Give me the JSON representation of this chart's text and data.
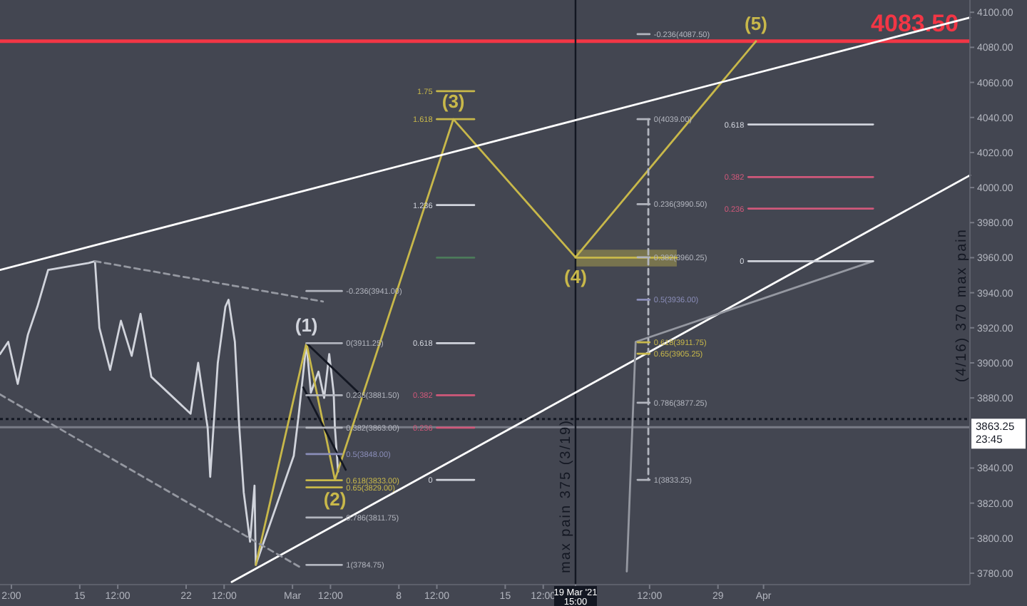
{
  "chart_data": {
    "type": "line",
    "xlim": [
      "2021-02-09T18:00",
      "2021-04-14T14:00"
    ],
    "ylim": [
      3773.5,
      4107
    ],
    "xticks": [
      {
        "value": "2021-02-10T12:00",
        "label": "2:00"
      },
      {
        "value": "2021-02-15",
        "label": "15"
      },
      {
        "value": "2021-02-17T12:00",
        "label": "12:00"
      },
      {
        "value": "2021-02-22",
        "label": "22"
      },
      {
        "value": "2021-02-24T12:00",
        "label": "12:00"
      },
      {
        "value": "2021-03-01",
        "label": "Mar"
      },
      {
        "value": "2021-03-03T12:00",
        "label": "12:00"
      },
      {
        "value": "2021-03-08",
        "label": "8"
      },
      {
        "value": "2021-03-10T12:00",
        "label": "12:00"
      },
      {
        "value": "2021-03-15",
        "label": "15"
      },
      {
        "value": "2021-03-17T12:00",
        "label": "12:00"
      },
      {
        "value": "2021-03-19T15:00",
        "label": "19 Mar '21 15:00"
      },
      {
        "value": "2021-03-24T12:00",
        "label": "12:00"
      },
      {
        "value": "2021-03-29",
        "label": "29"
      },
      {
        "value": "2021-04-01",
        "label": "Apr"
      }
    ],
    "yticks": [
      {
        "value": 3780,
        "label": "3780.00"
      },
      {
        "value": 3800,
        "label": "3800.00"
      },
      {
        "value": 3820,
        "label": "3820.00"
      },
      {
        "value": 3840,
        "label": "3840.00"
      },
      {
        "value": 3880,
        "label": "3880.00"
      },
      {
        "value": 3900,
        "label": "3900.00"
      },
      {
        "value": 3920,
        "label": "3920.00"
      },
      {
        "value": 3940,
        "label": "3940.00"
      },
      {
        "value": 3960,
        "label": "3960.00"
      },
      {
        "value": 3980,
        "label": "3980.00"
      },
      {
        "value": 4000,
        "label": "4000.00"
      },
      {
        "value": 4020,
        "label": "4020.00"
      },
      {
        "value": 4040,
        "label": "4040.00"
      },
      {
        "value": 4060,
        "label": "4060.00"
      },
      {
        "value": 4080,
        "label": "4080.00"
      },
      {
        "value": 4100,
        "label": "4100.00"
      }
    ],
    "series": [
      {
        "color": "#d1d4dc",
        "x": [
          "2021-02-09T18:00",
          "2021-02-10T07:00",
          "2021-02-10T22:00",
          "2021-02-11T14:00",
          "2021-02-12T05:00",
          "2021-02-12T22:00",
          "2021-02-15T14:00",
          "2021-02-16T00:00",
          "2021-02-16T07:00",
          "2021-02-17T00:00",
          "2021-02-17T17:00",
          "2021-02-18T10:00",
          "2021-02-19T00:00",
          "2021-02-19T17:00",
          "2021-02-22T07:00",
          "2021-02-22T19:00",
          "2021-02-23T10:00",
          "2021-02-23T14:00",
          "2021-02-24T02:00",
          "2021-02-24T14:00",
          "2021-02-24T19:00",
          "2021-02-25T05:00",
          "2021-02-25T12:00",
          "2021-02-25T19:00",
          "2021-02-26T05:00",
          "2021-02-26T12:00",
          "2021-02-26T14:00",
          "2021-03-01T02:00",
          "2021-03-01T10:00",
          "2021-03-01T22:00",
          "2021-03-02T05:00",
          "2021-03-02T17:00",
          "2021-03-03T02:00",
          "2021-03-03T10:00",
          "2021-03-03T17:00",
          "2021-03-03T19:00",
          "2021-03-04T00:00"
        ],
        "values": [
          3905,
          3912,
          3888,
          3916,
          3932,
          3953,
          3957,
          3958,
          3920,
          3896,
          3924,
          3904,
          3928,
          3892,
          3871,
          3900,
          3863,
          3835,
          3900,
          3932,
          3936,
          3912,
          3863,
          3826,
          3798,
          3830,
          3784.75,
          3847,
          3871,
          3911.25,
          3883,
          3895,
          3880,
          3905,
          3883,
          3863,
          3838
        ]
      },
      {
        "color": "#c8b84a",
        "x": [
          "2021-02-26T14:00",
          "2021-03-01T22:00",
          "2021-03-03T19:00",
          "2021-03-11T14:00",
          "2021-03-19T15:00",
          "2021-03-31T12:00"
        ],
        "values": [
          3784.75,
          3911.25,
          3833.25,
          4039,
          3960.25,
          4083.5
        ]
      },
      {
        "color": "#ffffff",
        "x": [
          "2021-02-09T18:00",
          "2021-04-14T14:00"
        ],
        "values": [
          3953,
          4097
        ]
      },
      {
        "color": "#ffffff",
        "x": [
          "2021-02-25T00:00",
          "2021-04-14T14:00"
        ],
        "values": [
          3775,
          4007
        ]
      },
      {
        "color": "#9598a1",
        "x": [
          "2021-02-16T00:00",
          "2021-03-03T00:00"
        ],
        "values": [
          3958,
          3935
        ],
        "line_style": "dashed"
      },
      {
        "color": "#9598a1",
        "x": [
          "2021-02-09T18:00",
          "2021-03-01T14:00"
        ],
        "values": [
          3882,
          3783
        ],
        "line_style": "dashed"
      },
      {
        "color": "#9598a1",
        "x": [
          "2021-03-23T00:00",
          "2021-03-23T14:00",
          "2021-04-08T05:00"
        ],
        "values": [
          3781,
          3912,
          3958
        ]
      },
      {
        "color": "#131722",
        "x": [
          "2021-03-01T22:00",
          "2021-03-05T17:00"
        ],
        "values": [
          3911.25,
          3880
        ]
      },
      {
        "color": "#131722",
        "x": [
          "2021-03-01T17:00",
          "2021-03-04T12:00"
        ],
        "values": [
          3886,
          3839
        ]
      },
      {
        "color": "#b2b5be",
        "x": [
          "2021-03-01T22:00",
          "2021-03-04T06:00"
        ],
        "values": [
          3941,
          3941
        ]
      },
      {
        "color": "#b2b5be",
        "x": [
          "2021-03-01T22:00",
          "2021-03-04T06:00"
        ],
        "values": [
          3911.25,
          3911.25
        ]
      },
      {
        "color": "#b2b5be",
        "x": [
          "2021-03-01T22:00",
          "2021-03-04T06:00"
        ],
        "values": [
          3881.5,
          3881.5
        ]
      },
      {
        "color": "#b2b5be",
        "x": [
          "2021-03-01T22:00",
          "2021-03-04T06:00"
        ],
        "values": [
          3863,
          3863
        ]
      },
      {
        "color": "#8a8db8",
        "x": [
          "2021-03-01T22:00",
          "2021-03-04T06:00"
        ],
        "values": [
          3848,
          3848
        ]
      },
      {
        "color": "#c8b84a",
        "x": [
          "2021-03-01T22:00",
          "2021-03-04T06:00"
        ],
        "values": [
          3833,
          3833
        ]
      },
      {
        "color": "#c8b84a",
        "x": [
          "2021-03-01T22:00",
          "2021-03-04T06:00"
        ],
        "values": [
          3829,
          3829
        ]
      },
      {
        "color": "#b2b5be",
        "x": [
          "2021-03-01T22:00",
          "2021-03-04T06:00"
        ],
        "values": [
          3811.75,
          3811.75
        ]
      },
      {
        "color": "#b2b5be",
        "x": [
          "2021-03-01T22:00",
          "2021-03-04T06:00"
        ],
        "values": [
          3784.75,
          3784.75
        ]
      },
      {
        "color": "#d1d4dc",
        "x": [
          "2021-03-10T12:00",
          "2021-03-12T23:00"
        ],
        "values": [
          3911.25,
          3911.25
        ]
      },
      {
        "color": "#d0587a",
        "x": [
          "2021-03-10T12:00",
          "2021-03-12T23:00"
        ],
        "values": [
          3881.5,
          3881.5
        ]
      },
      {
        "color": "#d0587a",
        "x": [
          "2021-03-10T12:00",
          "2021-03-12T23:00"
        ],
        "values": [
          3863,
          3863
        ]
      },
      {
        "color": "#d1d4dc",
        "x": [
          "2021-03-10T12:00",
          "2021-03-12T23:00"
        ],
        "values": [
          3833.25,
          3833.25
        ]
      },
      {
        "color": "#c8b84a",
        "x": [
          "2021-03-10T12:00",
          "2021-03-12T23:00"
        ],
        "values": [
          4055,
          4055
        ]
      },
      {
        "color": "#c8b84a",
        "x": [
          "2021-03-10T12:00",
          "2021-03-12T23:00"
        ],
        "values": [
          4039,
          4039
        ]
      },
      {
        "color": "#d1d4dc",
        "x": [
          "2021-03-10T12:00",
          "2021-03-12T23:00"
        ],
        "values": [
          3990,
          3990
        ]
      },
      {
        "color": "#4c7a5a",
        "x": [
          "2021-03-10T12:00",
          "2021-03-12T23:00"
        ],
        "values": [
          3960,
          3960
        ]
      },
      {
        "color": "#c8b84a",
        "x": [
          "2021-03-19T15:00",
          "2021-03-26T07:00"
        ],
        "values": [
          3960,
          3960
        ],
        "lower": [
          3955,
          3955
        ],
        "upper": [
          3964.5,
          3964.5
        ]
      },
      {
        "color": "#b2b5be",
        "x": [
          "2021-03-24T10:00",
          "2021-03-24T10:00"
        ],
        "values": [
          4039,
          3833.25
        ],
        "line_style": "dashed"
      },
      {
        "color": "#b2b5be",
        "x": [
          "2021-03-23T17:00",
          "2021-03-24T12:00"
        ],
        "values": [
          4087.5,
          4087.5
        ]
      },
      {
        "color": "#b2b5be",
        "x": [
          "2021-03-23T17:00",
          "2021-03-24T12:00"
        ],
        "values": [
          4039,
          4039
        ]
      },
      {
        "color": "#b2b5be",
        "x": [
          "2021-03-23T17:00",
          "2021-03-24T12:00"
        ],
        "values": [
          3990.5,
          3990.5
        ]
      },
      {
        "color": "#b2b5be",
        "x": [
          "2021-03-23T17:00",
          "2021-03-24T12:00"
        ],
        "values": [
          3960.25,
          3960.25
        ]
      },
      {
        "color": "#8a8db8",
        "x": [
          "2021-03-23T17:00",
          "2021-03-24T12:00"
        ],
        "values": [
          3936,
          3936
        ]
      },
      {
        "color": "#c8b84a",
        "x": [
          "2021-03-23T17:00",
          "2021-03-24T12:00"
        ],
        "values": [
          3911.75,
          3911.75
        ]
      },
      {
        "color": "#c8b84a",
        "x": [
          "2021-03-23T17:00",
          "2021-03-24T12:00"
        ],
        "values": [
          3905.25,
          3905.25
        ]
      },
      {
        "color": "#b2b5be",
        "x": [
          "2021-03-23T17:00",
          "2021-03-24T12:00"
        ],
        "values": [
          3877.25,
          3877.25
        ]
      },
      {
        "color": "#b2b5be",
        "x": [
          "2021-03-23T17:00",
          "2021-03-24T12:00"
        ],
        "values": [
          3833.25,
          3833.25
        ]
      },
      {
        "color": "#d1d4dc",
        "x": [
          "2021-03-31T00:00",
          "2021-04-08T05:00"
        ],
        "values": [
          4036,
          4036
        ]
      },
      {
        "color": "#d0587a",
        "x": [
          "2021-03-31T00:00",
          "2021-04-08T05:00"
        ],
        "values": [
          4006,
          4006
        ]
      },
      {
        "color": "#d0587a",
        "x": [
          "2021-03-31T00:00",
          "2021-04-08T05:00"
        ],
        "values": [
          3988,
          3988
        ]
      },
      {
        "color": "#d1d4dc",
        "x": [
          "2021-03-31T00:00",
          "2021-04-08T05:00"
        ],
        "values": [
          3958,
          3958
        ]
      }
    ],
    "ref_lines": [
      {
        "axis": "y",
        "value": 4083.5,
        "label": "4083.50",
        "color": "#f23645"
      },
      {
        "axis": "y",
        "value": 3863.25,
        "label": "3863.25\n23:45",
        "color": "#787b86"
      },
      {
        "axis": "y",
        "value": 3868,
        "color": "#131722",
        "line_style": "dotted"
      },
      {
        "axis": "x",
        "value": "2021-03-19T15:00",
        "label": "max pain 375 (3/19)",
        "color": "#131722"
      }
    ],
    "annotations": [
      {
        "text": "(1)",
        "x": "2021-03-01T22:00",
        "y": 3911.25
      },
      {
        "text": "(2)",
        "x": "2021-03-03T19:00",
        "y": 3833.25
      },
      {
        "text": "(3)",
        "x": "2021-03-11T14:00",
        "y": 4039
      },
      {
        "text": "(4)",
        "x": "2021-03-19T15:00",
        "y": 3960.25
      },
      {
        "text": "(5)",
        "x": "2021-03-31T12:00",
        "y": 4083.5
      },
      {
        "text": "-0.236(3941.00)",
        "x": "2021-03-04T06:00",
        "y": 3941
      },
      {
        "text": "0(3911.25)",
        "x": "2021-03-04T06:00",
        "y": 3911.25
      },
      {
        "text": "0.236(3881.50)",
        "x": "2021-03-04T06:00",
        "y": 3881.5
      },
      {
        "text": "0.382(3863.00)",
        "x": "2021-03-04T06:00",
        "y": 3863
      },
      {
        "text": "0.5(3848.00)",
        "x": "2021-03-04T06:00",
        "y": 3848
      },
      {
        "text": "0.618(3833.00)",
        "x": "2021-03-04T06:00",
        "y": 3833
      },
      {
        "text": "0.65(3829.00)",
        "x": "2021-03-04T06:00",
        "y": 3829
      },
      {
        "text": "0.786(3811.75)",
        "x": "2021-03-04T06:00",
        "y": 3811.75
      },
      {
        "text": "1(3784.75)",
        "x": "2021-03-04T06:00",
        "y": 3784.75
      },
      {
        "text": "0.618",
        "x": "2021-03-10T12:00",
        "y": 3911.25
      },
      {
        "text": "0.382",
        "x": "2021-03-10T12:00",
        "y": 3881.5
      },
      {
        "text": "0.236",
        "x": "2021-03-10T12:00",
        "y": 3863
      },
      {
        "text": "0",
        "x": "2021-03-10T12:00",
        "y": 3833.25
      },
      {
        "text": "1.75",
        "x": "2021-03-10T12:00",
        "y": 4055
      },
      {
        "text": "1.618",
        "x": "2021-03-10T12:00",
        "y": 4039
      },
      {
        "text": "1.236",
        "x": "2021-03-10T12:00",
        "y": 3990
      },
      {
        "text": "-0.236(4087.50)",
        "x": "2021-03-24T12:00",
        "y": 4087.5
      },
      {
        "text": "0(4039.00)",
        "x": "2021-03-24T12:00",
        "y": 4039
      },
      {
        "text": "0.236(3990.50)",
        "x": "2021-03-24T12:00",
        "y": 3990.5
      },
      {
        "text": "0.382(3960.25)",
        "x": "2021-03-24T12:00",
        "y": 3960.25
      },
      {
        "text": "0.5(3936.00)",
        "x": "2021-03-24T12:00",
        "y": 3936
      },
      {
        "text": "0.618(3911.75)",
        "x": "2021-03-24T12:00",
        "y": 3911.75
      },
      {
        "text": "0.65(3905.25)",
        "x": "2021-03-24T12:00",
        "y": 3905.25
      },
      {
        "text": "0.786(3877.25)",
        "x": "2021-03-24T12:00",
        "y": 3877.25
      },
      {
        "text": "1(3833.25)",
        "x": "2021-03-24T12:00",
        "y": 3833.25
      },
      {
        "text": "0.618",
        "x": "2021-03-31T00:00",
        "y": 4036
      },
      {
        "text": "0.382",
        "x": "2021-03-31T00:00",
        "y": 4006
      },
      {
        "text": "0.236",
        "x": "2021-03-31T00:00",
        "y": 3988
      },
      {
        "text": "0",
        "x": "2021-03-31T00:00",
        "y": 3958
      },
      "(4/16) 370 max pain"
    ]
  }
}
